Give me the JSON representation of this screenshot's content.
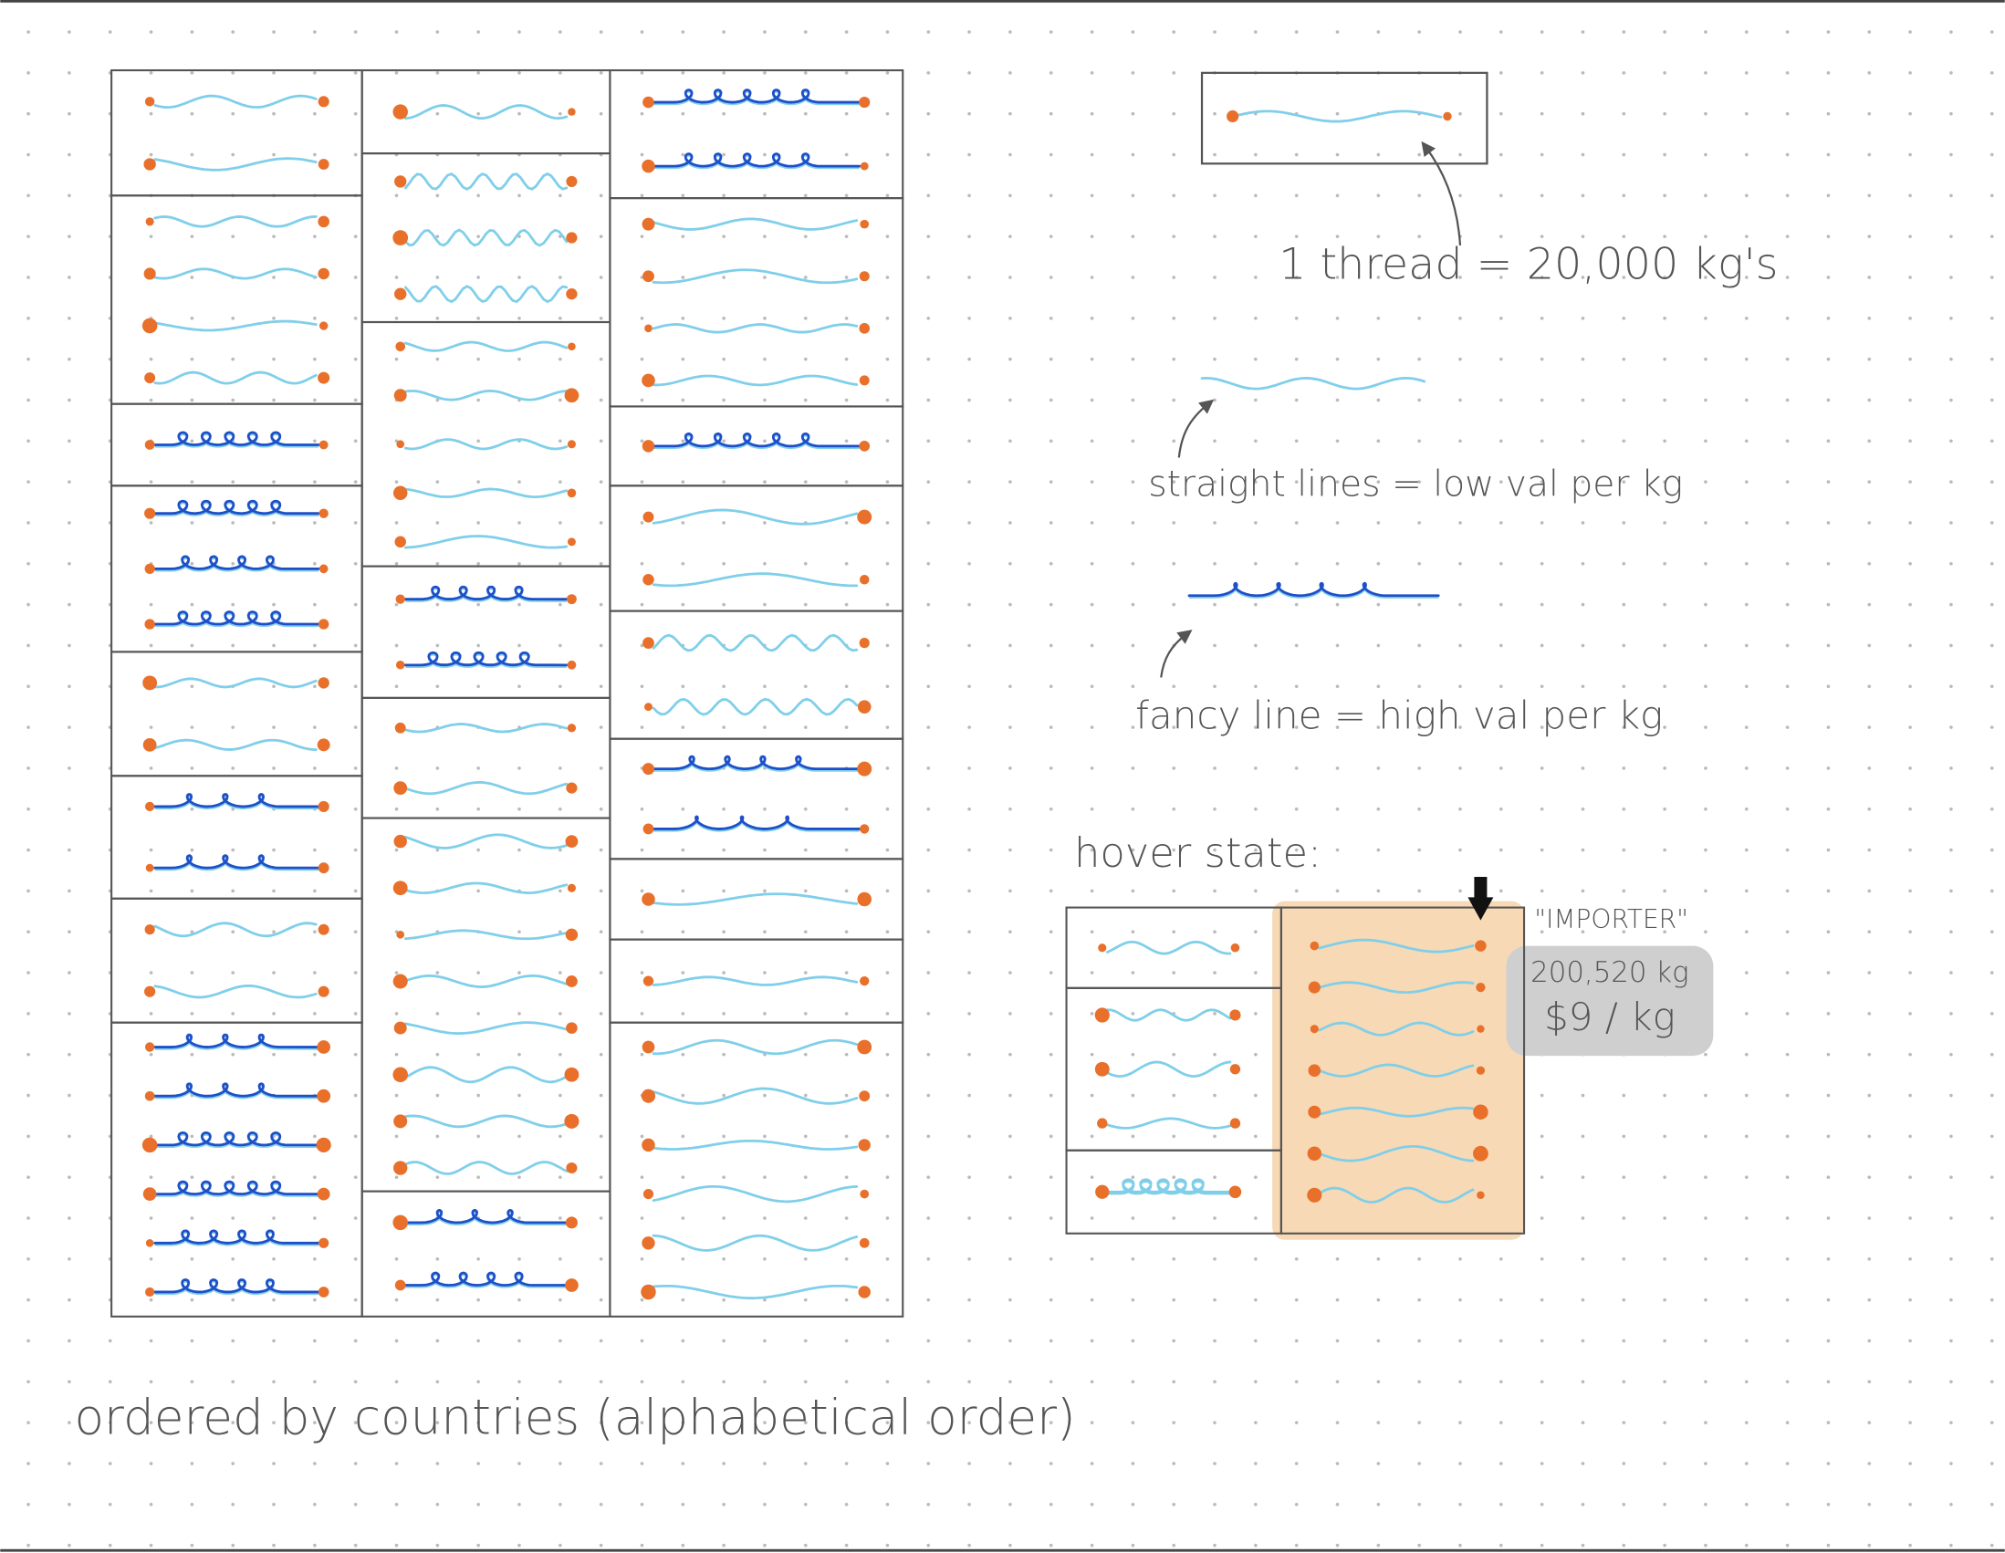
{
  "legend": {
    "unit": "1 thread = 20,000 kg's",
    "straight": "straight lines = low val per kg",
    "fancy": "fancy line = high val per kg"
  },
  "hover": {
    "title": "hover state:",
    "name": "\"IMPORTER\"",
    "weight": "200,520 kg",
    "price": "$9 / kg"
  },
  "footer": "ordered by countries (alphabetical order)"
}
